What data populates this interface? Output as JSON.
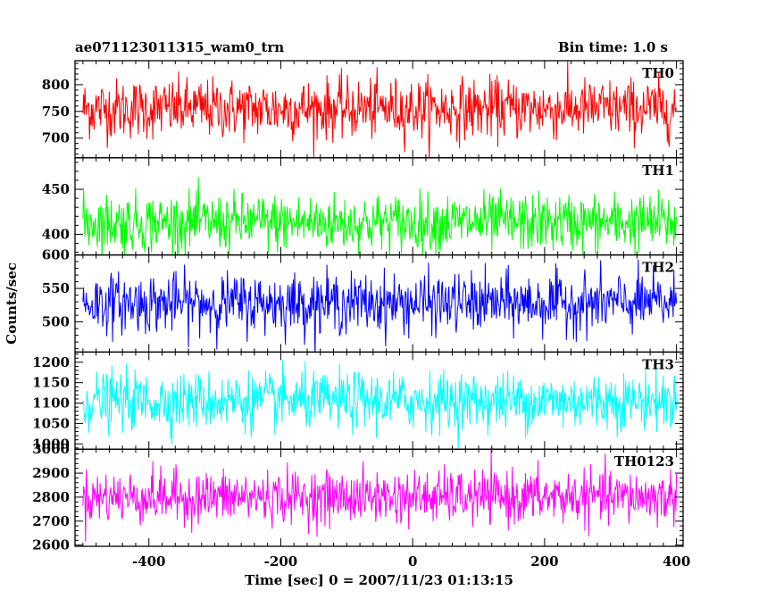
{
  "header": {
    "title": "ae071123011315_wam0_trn",
    "bin_time": "Bin time: 1.0 s"
  },
  "chart_data": {
    "type": "line",
    "title": "ae071123011315_wam0_trn",
    "subtitle": "Bin time: 1.0 s",
    "xlabel": "Time [sec] 0 = 2007/11/23 01:13:15",
    "ylabel": "Counts/sec",
    "xlim": [
      -512,
      410
    ],
    "x_ticks": [
      -400,
      -200,
      0,
      200,
      400
    ],
    "x_start": -500,
    "x_end": 400,
    "x_step": 1,
    "grid": false,
    "legend": "panel labels top-right",
    "series": [
      {
        "name": "TH0",
        "color": "#ff0000",
        "ylim": [
          663,
          845
        ],
        "y_ticks": [
          700,
          750,
          800
        ],
        "mean": 755,
        "std": 28
      },
      {
        "name": "TH1",
        "color": "#00ff00",
        "ylim": [
          377,
          485
        ],
        "y_ticks": [
          400,
          450
        ],
        "mean": 413,
        "std": 16
      },
      {
        "name": "TH2",
        "color": "#0000ff",
        "ylim": [
          455,
          600
        ],
        "y_ticks": [
          500,
          550,
          600
        ],
        "mean": 528,
        "std": 22
      },
      {
        "name": "TH3",
        "color": "#00ffff",
        "ylim": [
          987,
          1225
        ],
        "y_ticks": [
          1000,
          1050,
          1100,
          1150,
          1200
        ],
        "mean": 1105,
        "std": 35
      },
      {
        "name": "TH0123",
        "color": "#ff00ff",
        "ylim": [
          2595,
          3000
        ],
        "y_ticks": [
          2600,
          2700,
          2800,
          2900,
          3000
        ],
        "mean": 2800,
        "std": 55
      }
    ]
  }
}
